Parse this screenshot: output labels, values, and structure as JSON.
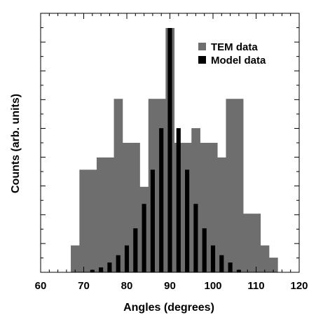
{
  "chart_data": {
    "type": "bar",
    "xlabel": "Angles (degrees)",
    "ylabel": "Counts (arb. units)",
    "xlim": [
      60,
      120
    ],
    "ylim": [
      0,
      1.0
    ],
    "xticks": [
      60,
      70,
      80,
      90,
      100,
      110,
      120
    ],
    "xtick_labels": [
      "60",
      "70",
      "80",
      "90",
      "100",
      "110",
      "120"
    ],
    "legend_position": "top-right",
    "bin_width": 2,
    "series": [
      {
        "name": "TEM data",
        "color": "#6e6e6e",
        "style": "histogram",
        "bins": [
          {
            "x0": 67,
            "x1": 69,
            "value": 0.11
          },
          {
            "x0": 69,
            "x1": 71,
            "value": 0.42
          },
          {
            "x0": 71,
            "x1": 73,
            "value": 0.42
          },
          {
            "x0": 73,
            "x1": 75,
            "value": 0.47
          },
          {
            "x0": 75,
            "x1": 77,
            "value": 0.47
          },
          {
            "x0": 77,
            "x1": 79,
            "value": 0.71
          },
          {
            "x0": 79,
            "x1": 81,
            "value": 0.53
          },
          {
            "x0": 81,
            "x1": 83,
            "value": 0.53
          },
          {
            "x0": 83,
            "x1": 85,
            "value": 0.35
          },
          {
            "x0": 85,
            "x1": 87,
            "value": 0.71
          },
          {
            "x0": 87,
            "x1": 89,
            "value": 0.71
          },
          {
            "x0": 89,
            "x1": 91,
            "value": 1.0
          },
          {
            "x0": 91,
            "x1": 93,
            "value": 0.53
          },
          {
            "x0": 93,
            "x1": 95,
            "value": 0.53
          },
          {
            "x0": 95,
            "x1": 97,
            "value": 0.59
          },
          {
            "x0": 97,
            "x1": 99,
            "value": 0.53
          },
          {
            "x0": 99,
            "x1": 101,
            "value": 0.53
          },
          {
            "x0": 101,
            "x1": 103,
            "value": 0.47
          },
          {
            "x0": 103,
            "x1": 105,
            "value": 0.71
          },
          {
            "x0": 105,
            "x1": 107,
            "value": 0.71
          },
          {
            "x0": 107,
            "x1": 109,
            "value": 0.24
          },
          {
            "x0": 109,
            "x1": 111,
            "value": 0.24
          },
          {
            "x0": 111,
            "x1": 113,
            "value": 0.11
          },
          {
            "x0": 113,
            "x1": 115,
            "value": 0.06
          }
        ]
      },
      {
        "name": "Model data",
        "color": "#000000",
        "style": "bars",
        "x": [
          72,
          74,
          76,
          78,
          80,
          82,
          84,
          86,
          88,
          90,
          92,
          94,
          96,
          98,
          100,
          102,
          104,
          106
        ],
        "values": [
          0.01,
          0.02,
          0.04,
          0.07,
          0.11,
          0.18,
          0.28,
          0.42,
          0.59,
          1.0,
          0.59,
          0.42,
          0.28,
          0.18,
          0.11,
          0.07,
          0.04,
          0.01
        ]
      }
    ]
  }
}
